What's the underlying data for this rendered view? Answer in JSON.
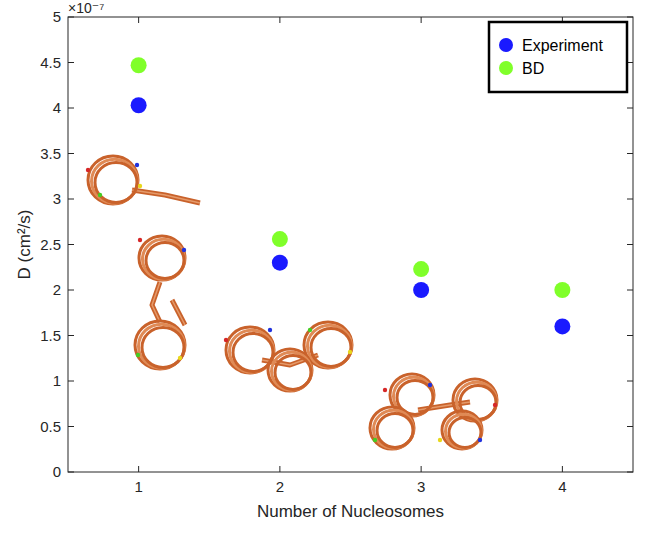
{
  "chart_data": {
    "type": "scatter",
    "x_label": "Number of Nucleosomes",
    "y_label": "D (cm²/s)",
    "y_offset_text": "×10⁻⁷",
    "x": [
      1,
      2,
      3,
      4
    ],
    "series": [
      {
        "name": "Experiment",
        "color": "#1a1aff",
        "marker": "circle",
        "values": [
          4.03,
          2.3,
          2.0,
          1.6
        ]
      },
      {
        "name": "BD",
        "color": "#80ff2a",
        "marker": "circle",
        "values": [
          4.47,
          2.56,
          2.23,
          2.0
        ]
      }
    ],
    "xlim": [
      0.5,
      4.5
    ],
    "xticks": [
      1,
      2,
      3,
      4
    ],
    "ylim": [
      0,
      5
    ],
    "yticks": [
      0,
      0.5,
      1,
      1.5,
      2,
      2.5,
      3,
      3.5,
      4,
      4.5,
      5
    ],
    "grid": false,
    "legend": "top-right"
  }
}
